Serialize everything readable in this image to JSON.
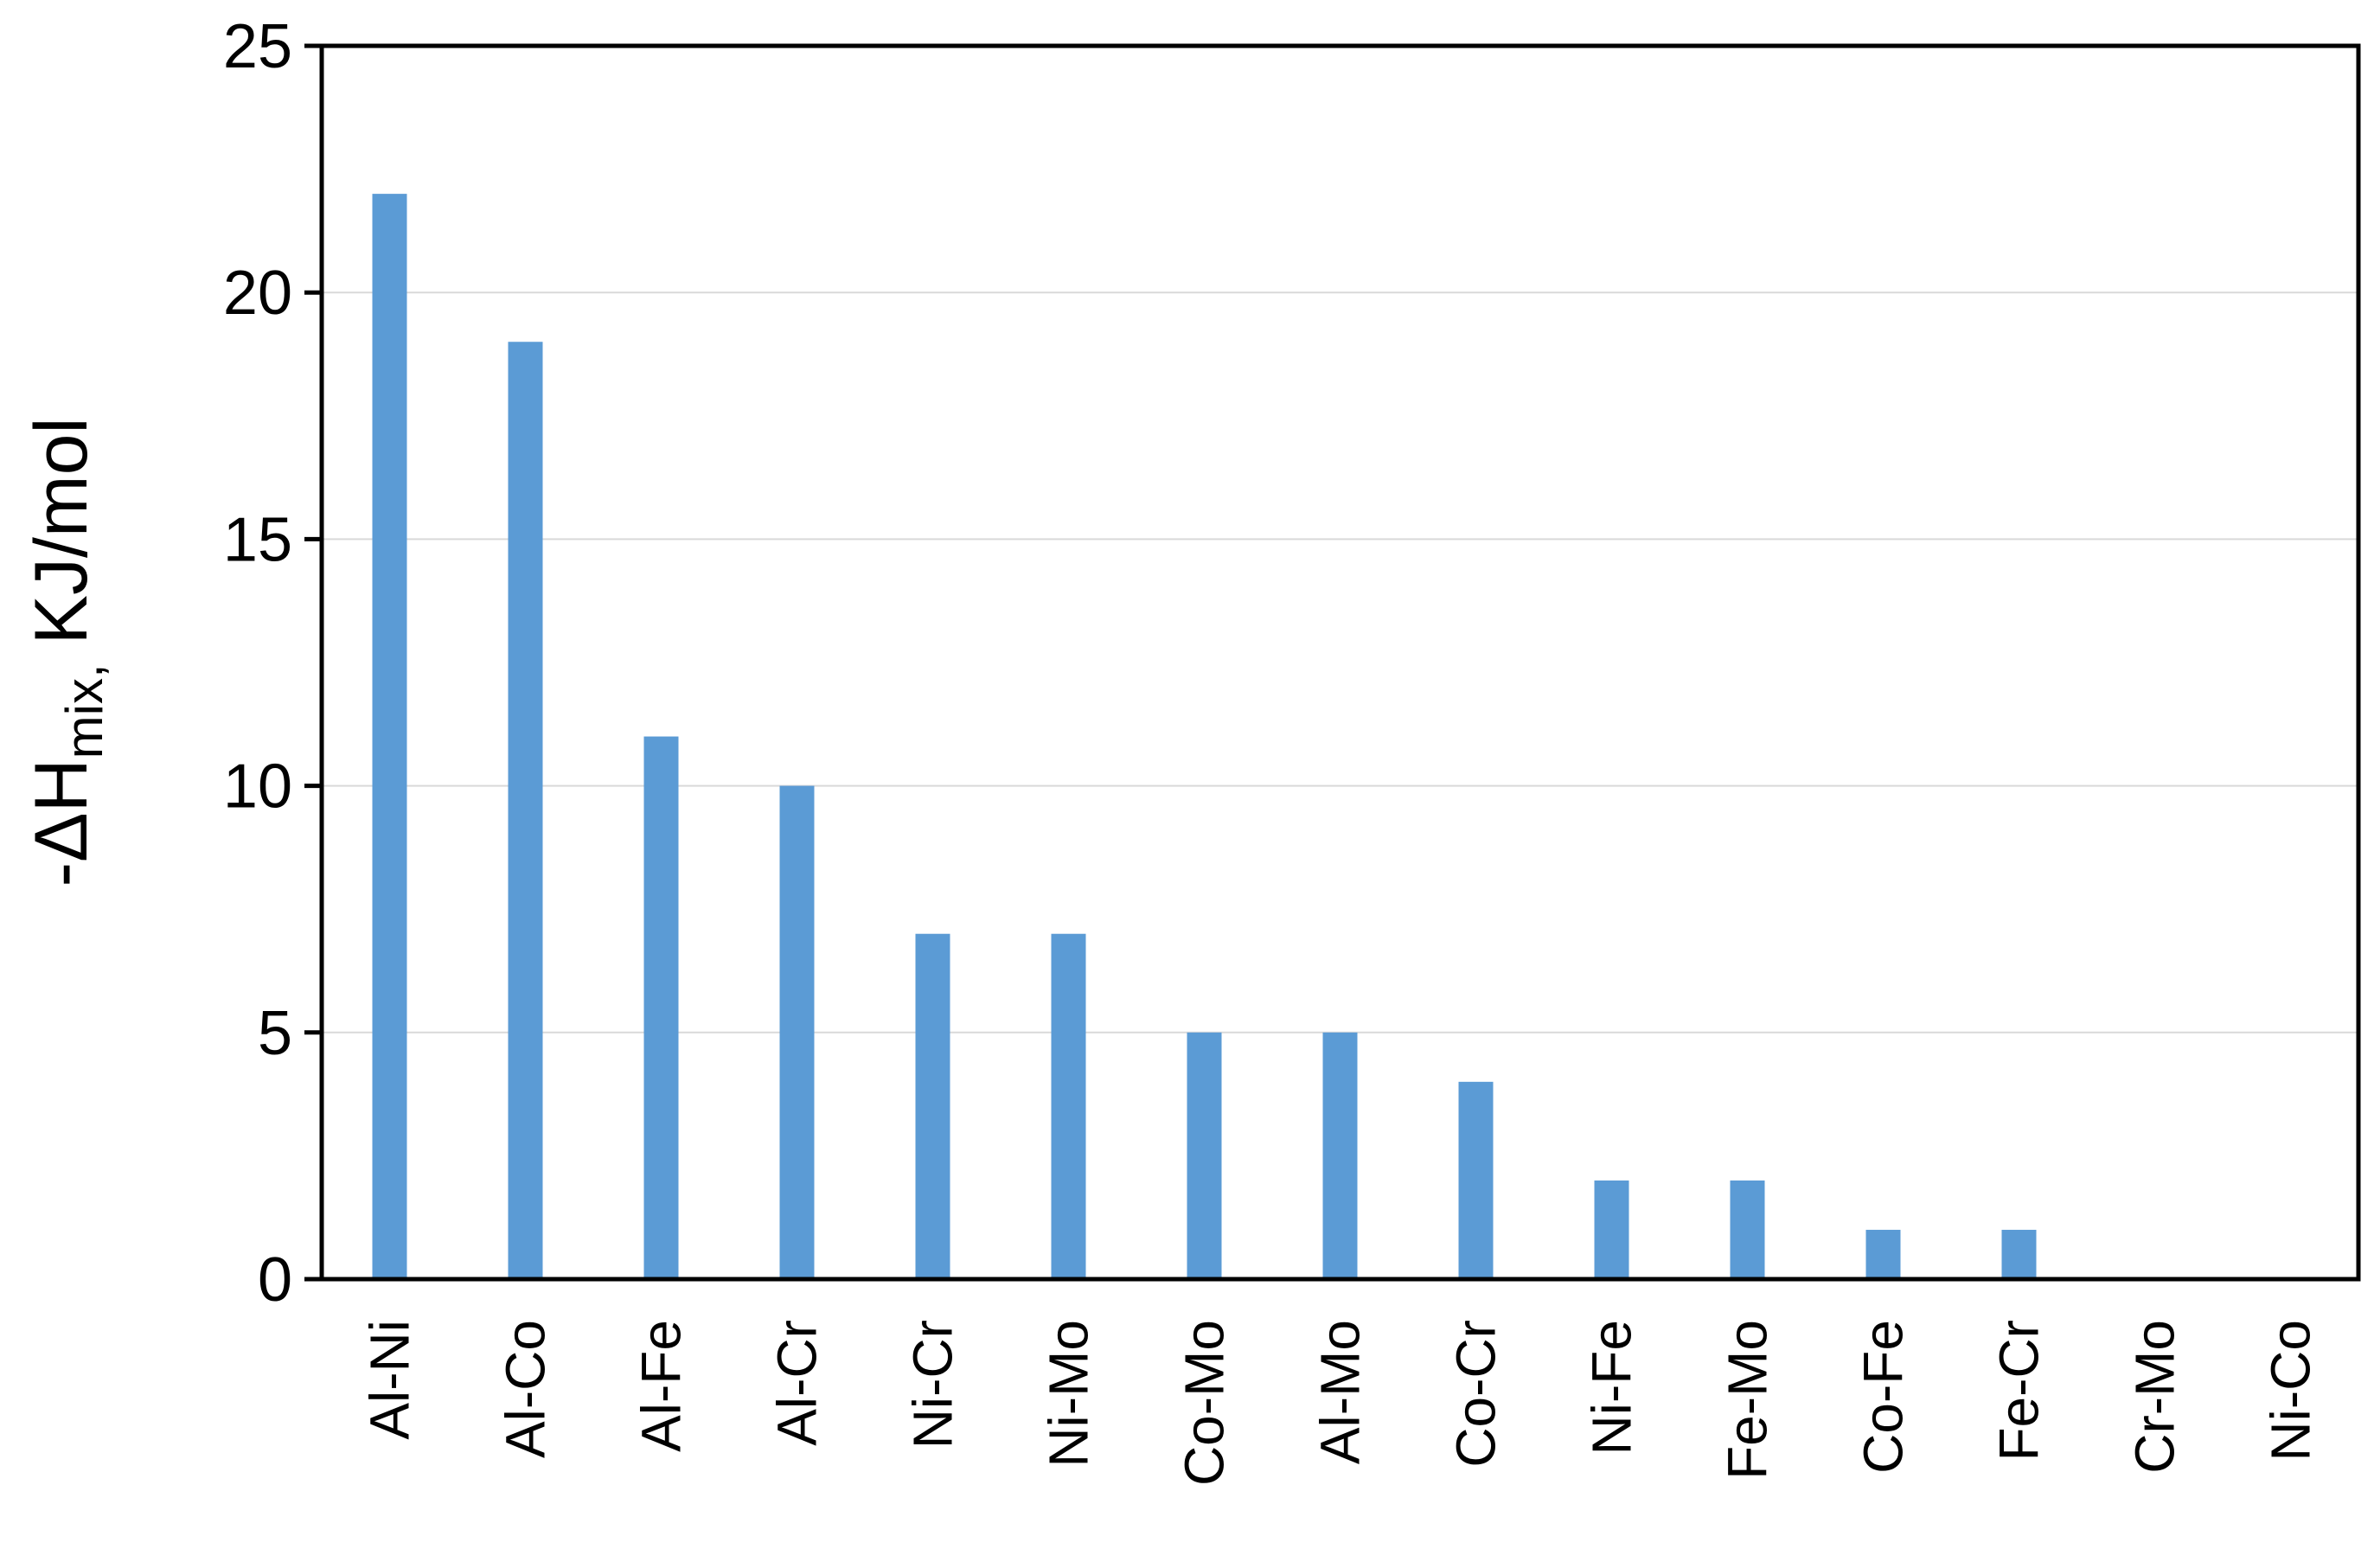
{
  "chart_data": {
    "type": "bar",
    "y_label": {
      "main": "-ΔH",
      "sub": "mix,",
      "unit": "KJ/mol"
    },
    "categories": [
      "Al-Ni",
      "Al-Co",
      "Al-Fe",
      "Al-Cr",
      "Ni-Cr",
      "Ni-Mo",
      "Co-Mo",
      "Al-Mo",
      "Co-Cr",
      "Ni-Fe",
      "Fe-Mo",
      "Co-Fe",
      "Fe-Cr",
      "Cr-Mo",
      "Ni-Co"
    ],
    "values": [
      22,
      19,
      11,
      10,
      7,
      7,
      5,
      5,
      4,
      2,
      2,
      1,
      1,
      0,
      0
    ],
    "color": "#5b9bd5",
    "ylim": [
      0,
      25
    ],
    "yticks": [
      0,
      5,
      10,
      15,
      20,
      25
    ],
    "grid": true
  }
}
